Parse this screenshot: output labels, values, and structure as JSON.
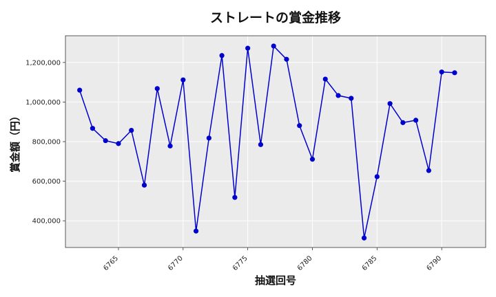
{
  "chart_data": {
    "type": "line",
    "title": "ストレートの賞金推移",
    "xlabel": "抽選回号",
    "ylabel": "賞金額（円）",
    "x_ticks": [
      6765,
      6770,
      6775,
      6780,
      6785,
      6790
    ],
    "y_ticks": [
      400000,
      600000,
      800000,
      1000000,
      1200000
    ],
    "y_tick_labels": [
      "400,000",
      "600,000",
      "800,000",
      "1,000,000",
      "1,200,000"
    ],
    "xlim": [
      6760.9,
      6793.4
    ],
    "ylim": [
      265000,
      1335000
    ],
    "grid": true,
    "series": [
      {
        "color": "#0000cc",
        "x": [
          6762,
          6763,
          6764,
          6765,
          6766,
          6767,
          6768,
          6769,
          6770,
          6771,
          6772,
          6773,
          6774,
          6775,
          6776,
          6777,
          6778,
          6779,
          6780,
          6781,
          6782,
          6783,
          6784,
          6785,
          6786,
          6787,
          6788,
          6789,
          6790,
          6791
        ],
        "values": [
          1060000,
          867000,
          805000,
          790000,
          857000,
          580000,
          1068000,
          778000,
          1112000,
          348000,
          818000,
          1235000,
          518000,
          1272000,
          785000,
          1283000,
          1216000,
          881000,
          711000,
          1116000,
          1033000,
          1019000,
          313000,
          623000,
          992000,
          896000,
          908000,
          654000,
          1152000,
          1148000
        ]
      }
    ]
  }
}
